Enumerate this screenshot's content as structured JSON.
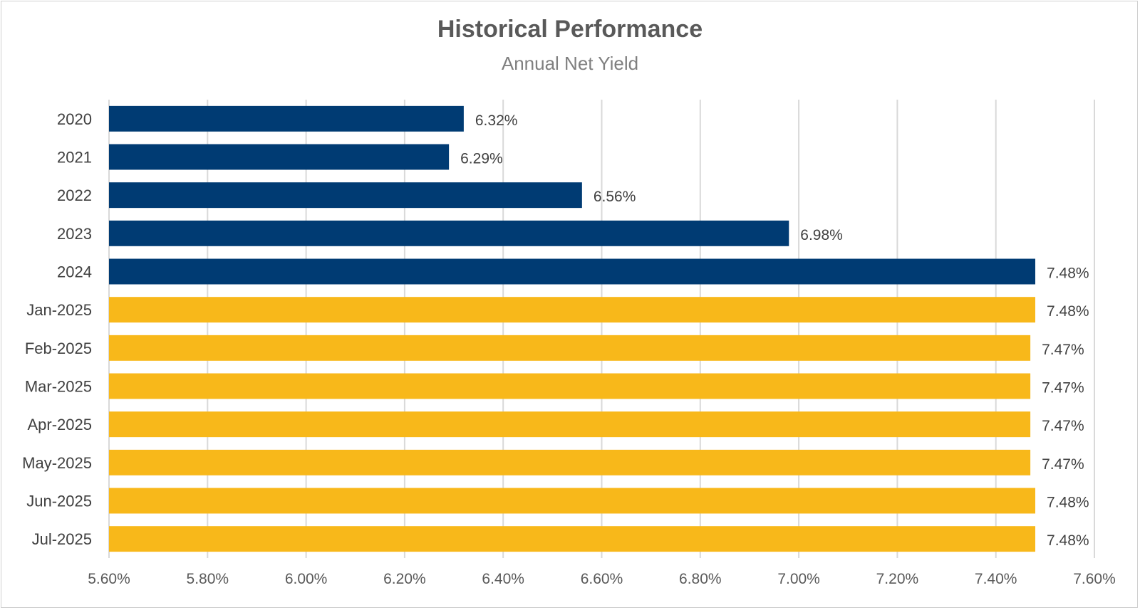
{
  "chart_data": {
    "type": "bar",
    "orientation": "horizontal",
    "title": "Historical Performance",
    "subtitle": "Annual Net Yield",
    "categories": [
      "2020",
      "2021",
      "2022",
      "2023",
      "2024",
      "Jan-2025",
      "Feb-2025",
      "Mar-2025",
      "Apr-2025",
      "May-2025",
      "Jun-2025",
      "Jul-2025"
    ],
    "values": [
      6.32,
      6.29,
      6.56,
      6.98,
      7.48,
      7.48,
      7.47,
      7.47,
      7.47,
      7.47,
      7.48,
      7.48
    ],
    "data_labels": [
      "6.32%",
      "6.29%",
      "6.56%",
      "6.98%",
      "7.48%",
      "7.48%",
      "7.47%",
      "7.47%",
      "7.47%",
      "7.47%",
      "7.48%",
      "7.48%"
    ],
    "bar_colors": [
      "#003b73",
      "#003b73",
      "#003b73",
      "#003b73",
      "#003b73",
      "#f8b81a",
      "#f8b81a",
      "#f8b81a",
      "#f8b81a",
      "#f8b81a",
      "#f8b81a",
      "#f8b81a"
    ],
    "xlim": [
      5.6,
      7.6
    ],
    "x_ticks": [
      5.6,
      5.8,
      6.0,
      6.2,
      6.4,
      6.6,
      6.8,
      7.0,
      7.2,
      7.4,
      7.6
    ],
    "x_tick_labels": [
      "5.60%",
      "5.80%",
      "6.00%",
      "6.20%",
      "6.40%",
      "6.60%",
      "6.80%",
      "7.00%",
      "7.20%",
      "7.40%",
      "7.60%"
    ],
    "xlabel": "",
    "ylabel": "",
    "grid": true,
    "legend": "none"
  }
}
